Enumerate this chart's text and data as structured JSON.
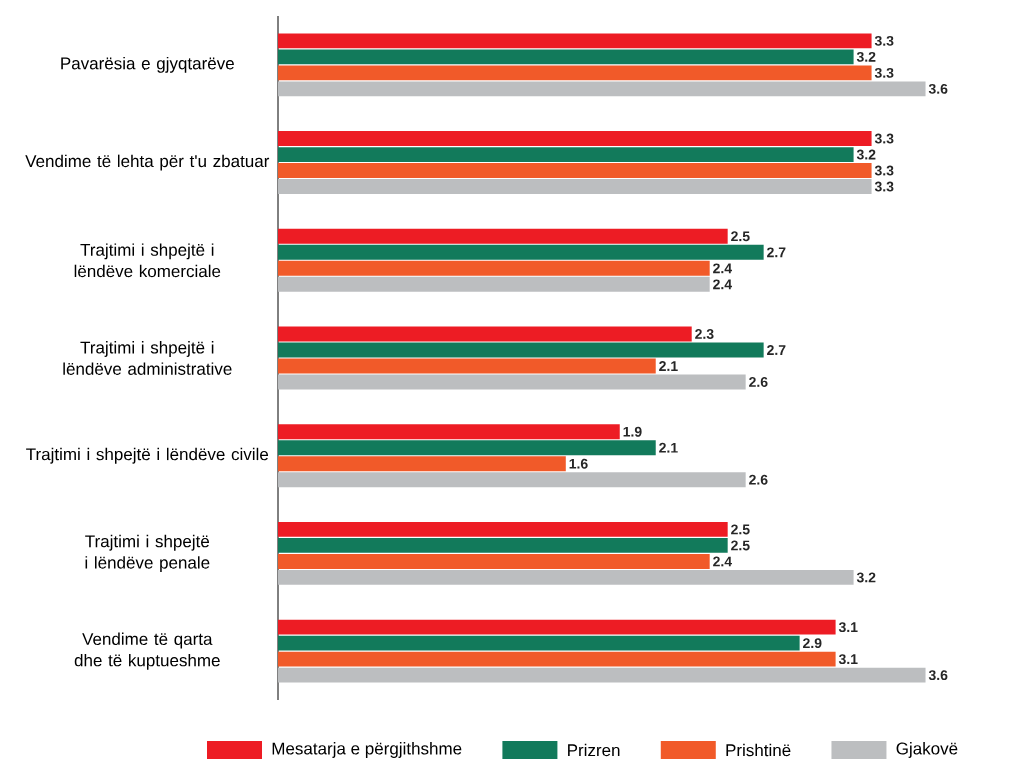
{
  "chart_data": {
    "type": "bar",
    "orientation": "horizontal",
    "data_labels": true,
    "legend": "bottom",
    "categories": [
      "Pavarësia e gjyqtarëve",
      "Vendime të lehta për t'u zbatuar",
      "Trajtimi i shpejtë i lëndëve komerciale",
      "Trajtimi i shpejtë i lëndëve administrative",
      "Trajtimi i shpejtë i lëndëve civile",
      "Trajtimi i shpejtë i lëndëve penale",
      "Vendime të qarta dhe të kuptueshme"
    ],
    "series": [
      {
        "name": "Mesatarja e përgjithshme",
        "color": "#ed1c24",
        "values": [
          3.3,
          3.3,
          2.5,
          2.3,
          1.9,
          2.5,
          3.1
        ]
      },
      {
        "name": "Prizren",
        "color": "#127a5b",
        "values": [
          3.2,
          3.2,
          2.7,
          2.7,
          2.1,
          2.5,
          2.9
        ]
      },
      {
        "name": "Prishtinë",
        "color": "#f15a29",
        "values": [
          3.3,
          3.3,
          2.4,
          2.1,
          1.6,
          2.4,
          3.1
        ]
      },
      {
        "name": "Gjakovë",
        "color": "#bcbec0",
        "values": [
          3.6,
          3.3,
          2.4,
          2.6,
          2.6,
          3.2,
          3.6
        ]
      }
    ]
  }
}
